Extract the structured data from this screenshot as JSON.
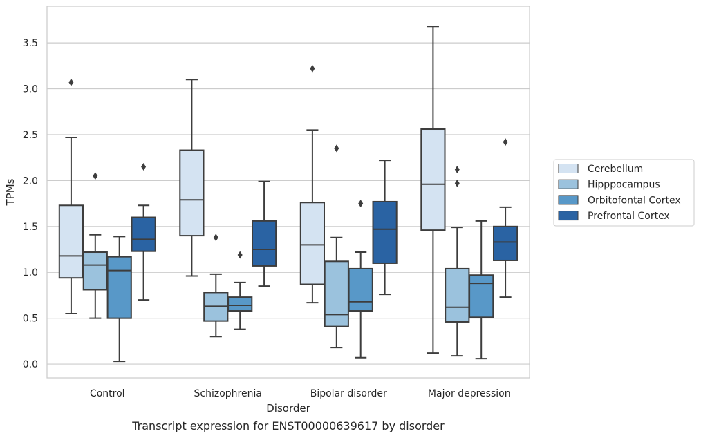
{
  "chart_data": {
    "type": "boxplot",
    "caption": "Transcript expression for ENST00000639617 by disorder",
    "xlabel": "Disorder",
    "ylabel": "TPMs",
    "ylim": [
      -0.15,
      3.9
    ],
    "yticks": [
      0.0,
      0.5,
      1.0,
      1.5,
      2.0,
      2.5,
      3.0,
      3.5
    ],
    "ytick_labels": [
      "0.0",
      "0.5",
      "1.0",
      "1.5",
      "2.0",
      "2.5",
      "3.0",
      "3.5"
    ],
    "grid": "horizontal",
    "legend_position": "right",
    "categories": [
      "Control",
      "Schizophrenia",
      "Bipolar disorder",
      "Major depression"
    ],
    "series": [
      {
        "name": "Cerebellum",
        "color": "#d4e3f2",
        "boxes": [
          {
            "whisker_low": 0.55,
            "q1": 0.94,
            "median": 1.18,
            "q3": 1.73,
            "whisker_high": 2.47,
            "outliers": [
              3.07
            ]
          },
          {
            "whisker_low": 0.96,
            "q1": 1.4,
            "median": 1.79,
            "q3": 2.33,
            "whisker_high": 3.1,
            "outliers": []
          },
          {
            "whisker_low": 0.67,
            "q1": 0.87,
            "median": 1.3,
            "q3": 1.76,
            "whisker_high": 2.55,
            "outliers": [
              3.22
            ]
          },
          {
            "whisker_low": 0.12,
            "q1": 1.46,
            "median": 1.96,
            "q3": 2.56,
            "whisker_high": 3.68,
            "outliers": []
          }
        ]
      },
      {
        "name": "Hipppocampus",
        "color": "#9bc2dd",
        "boxes": [
          {
            "whisker_low": 0.5,
            "q1": 0.81,
            "median": 1.08,
            "q3": 1.22,
            "whisker_high": 1.41,
            "outliers": [
              2.05
            ]
          },
          {
            "whisker_low": 0.3,
            "q1": 0.47,
            "median": 0.63,
            "q3": 0.78,
            "whisker_high": 0.98,
            "outliers": [
              1.38
            ]
          },
          {
            "whisker_low": 0.18,
            "q1": 0.41,
            "median": 0.54,
            "q3": 1.12,
            "whisker_high": 1.38,
            "outliers": [
              2.35
            ]
          },
          {
            "whisker_low": 0.09,
            "q1": 0.46,
            "median": 0.62,
            "q3": 1.04,
            "whisker_high": 1.49,
            "outliers": [
              1.97,
              2.12
            ]
          }
        ]
      },
      {
        "name": "Orbitofontal Cortex",
        "color": "#5898c8",
        "boxes": [
          {
            "whisker_low": 0.03,
            "q1": 0.5,
            "median": 1.02,
            "q3": 1.17,
            "whisker_high": 1.39,
            "outliers": []
          },
          {
            "whisker_low": 0.38,
            "q1": 0.58,
            "median": 0.64,
            "q3": 0.73,
            "whisker_high": 0.89,
            "outliers": [
              1.19
            ]
          },
          {
            "whisker_low": 0.07,
            "q1": 0.58,
            "median": 0.68,
            "q3": 1.04,
            "whisker_high": 1.22,
            "outliers": [
              1.75
            ]
          },
          {
            "whisker_low": 0.06,
            "q1": 0.51,
            "median": 0.88,
            "q3": 0.97,
            "whisker_high": 1.56,
            "outliers": []
          }
        ]
      },
      {
        "name": "Prefrontal Cortex",
        "color": "#2a63a3",
        "boxes": [
          {
            "whisker_low": 0.7,
            "q1": 1.23,
            "median": 1.36,
            "q3": 1.6,
            "whisker_high": 1.73,
            "outliers": [
              2.15
            ]
          },
          {
            "whisker_low": 0.85,
            "q1": 1.07,
            "median": 1.25,
            "q3": 1.56,
            "whisker_high": 1.99,
            "outliers": []
          },
          {
            "whisker_low": 0.76,
            "q1": 1.1,
            "median": 1.47,
            "q3": 1.77,
            "whisker_high": 2.22,
            "outliers": []
          },
          {
            "whisker_low": 0.73,
            "q1": 1.13,
            "median": 1.33,
            "q3": 1.5,
            "whisker_high": 1.71,
            "outliers": [
              2.42
            ]
          }
        ]
      }
    ]
  }
}
